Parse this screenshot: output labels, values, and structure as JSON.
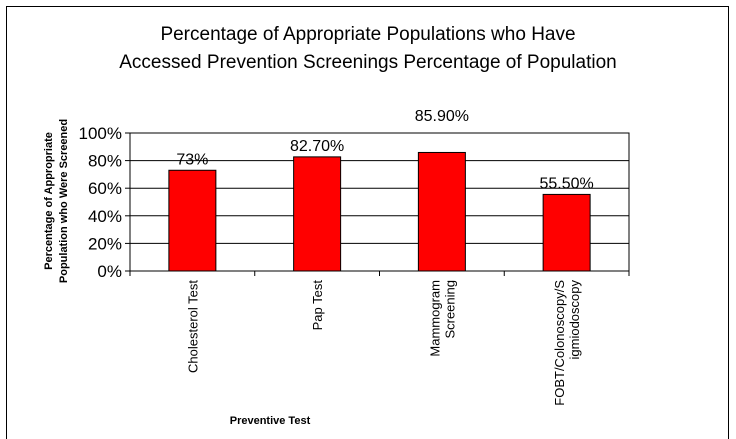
{
  "chart_data": {
    "type": "bar",
    "title_line1": "Percentage of Appropriate Populations who Have",
    "title_line2": "Accessed Prevention Screenings Percentage of Population",
    "xlabel": "Preventive Test",
    "ylabel_line1": "Percentage of Appropriate",
    "ylabel_line2": "Population who Were Screened",
    "categories": [
      [
        "Cholesterol Test"
      ],
      [
        "Pap Test"
      ],
      [
        "Mammogram",
        "Screening"
      ],
      [
        "FOBT/Colonoscopy/S",
        "igmiodoscopy"
      ]
    ],
    "values": [
      73,
      82.7,
      85.9,
      55.5
    ],
    "data_labels": [
      "73%",
      "82.70%",
      "85.90%",
      "55.50%"
    ],
    "y_ticks": [
      0,
      20,
      40,
      60,
      80,
      100
    ],
    "y_tick_labels": [
      "0%",
      "20%",
      "40%",
      "60%",
      "80%",
      "100%"
    ],
    "ylim": [
      0,
      100
    ],
    "grid": true,
    "bar_color": "#ff0000"
  }
}
